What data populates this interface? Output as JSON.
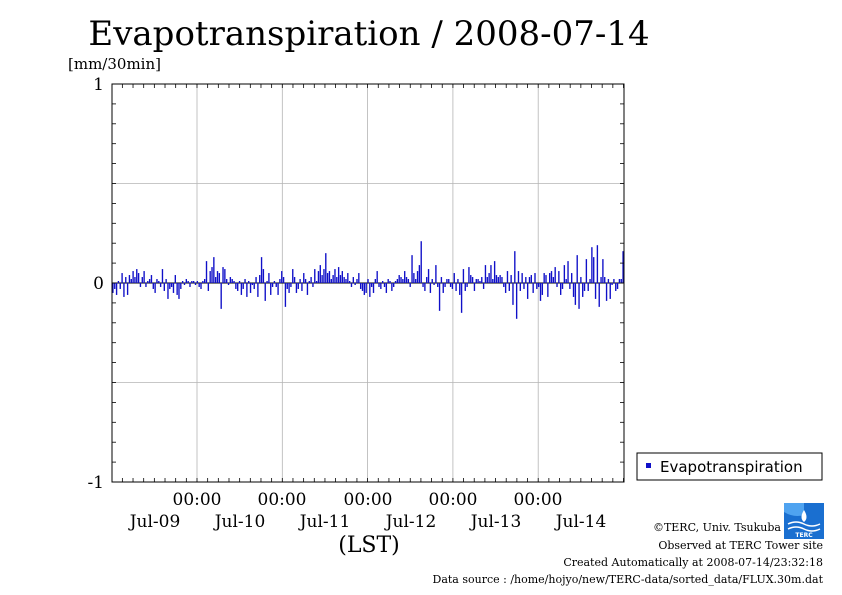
{
  "chart_data": {
    "type": "bar",
    "title": "Evapotranspiration / 2008-07-14",
    "ylabel": "[mm/30min]",
    "xlabel": "(LST)",
    "ylim": [
      -1,
      1
    ],
    "yticks": [
      "1",
      "0",
      "-1"
    ],
    "xticks_time": [
      "00:00",
      "00:00",
      "00:00",
      "00:00",
      "00:00"
    ],
    "xticks_date": [
      "Jul-09",
      "Jul-10",
      "Jul-11",
      "Jul-12",
      "Jul-13",
      "Jul-14"
    ],
    "grid": true,
    "legend_position": "right-bottom",
    "series": [
      {
        "name": "Evapotranspiration",
        "color": "#1010c8",
        "values": [
          -0.05,
          -0.03,
          -0.06,
          0.01,
          -0.03,
          0.05,
          -0.07,
          0.03,
          -0.06,
          0.04,
          0.02,
          0.06,
          0.03,
          0.07,
          0.05,
          -0.02,
          0.03,
          0.06,
          -0.02,
          0.01,
          0.02,
          0.04,
          -0.03,
          -0.05,
          0.02,
          0.01,
          -0.02,
          0.07,
          -0.04,
          0.02,
          -0.08,
          -0.03,
          -0.02,
          -0.05,
          0.04,
          -0.06,
          -0.08,
          -0.03,
          0.01,
          -0.01,
          0.02,
          0.01,
          -0.02,
          0.01,
          0.01,
          -0.01,
          0.01,
          -0.02,
          -0.03,
          0.01,
          0.02,
          0.11,
          -0.04,
          0.06,
          0.08,
          0.13,
          0.03,
          0.06,
          0.05,
          -0.13,
          0.08,
          0.07,
          0.02,
          -0.01,
          0.03,
          0.02,
          0.01,
          -0.03,
          -0.04,
          0.01,
          -0.06,
          -0.03,
          0.02,
          -0.07,
          0.01,
          -0.05,
          -0.01,
          -0.03,
          0.03,
          -0.07,
          0.04,
          0.13,
          0.07,
          -0.09,
          0.01,
          0.05,
          -0.06,
          -0.02,
          0.01,
          -0.02,
          -0.06,
          0.02,
          0.06,
          0.03,
          -0.12,
          -0.03,
          -0.05,
          -0.02,
          0.07,
          0.03,
          -0.05,
          -0.03,
          0.02,
          -0.04,
          0.05,
          0.02,
          -0.06,
          0.01,
          0.03,
          -0.02,
          0.07,
          0.01,
          0.06,
          0.09,
          0.04,
          0.07,
          0.15,
          0.05,
          0.06,
          0.02,
          0.04,
          0.07,
          0.03,
          0.08,
          0.04,
          0.06,
          0.03,
          0.02,
          0.05,
          0.01,
          -0.02,
          0.03,
          -0.01,
          0.02,
          0.05,
          -0.03,
          -0.04,
          -0.06,
          -0.05,
          0.02,
          -0.07,
          -0.02,
          -0.05,
          0.02,
          0.06,
          -0.02,
          -0.03,
          0.01,
          -0.02,
          -0.05,
          0.02,
          0.01,
          -0.04,
          -0.02,
          0.01,
          0.02,
          0.04,
          0.03,
          0.02,
          0.06,
          0.03,
          0.02,
          -0.02,
          0.14,
          0.05,
          0.02,
          0.06,
          0.09,
          0.21,
          -0.02,
          -0.04,
          0.03,
          0.07,
          -0.05,
          0.02,
          -0.01,
          0.09,
          -0.02,
          -0.14,
          0.03,
          -0.05,
          -0.02,
          0.02,
          0.02,
          -0.02,
          -0.03,
          0.05,
          -0.04,
          0.02,
          -0.06,
          -0.15,
          0.07,
          -0.04,
          -0.02,
          0.08,
          0.04,
          0.03,
          -0.04,
          0.02,
          0.02,
          0.01,
          0.03,
          -0.03,
          0.09,
          0.03,
          0.05,
          0.09,
          0.02,
          0.11,
          0.04,
          0.03,
          0.04,
          0.03,
          -0.02,
          -0.05,
          0.06,
          -0.04,
          0.04,
          -0.11,
          0.16,
          -0.18,
          0.06,
          -0.04,
          0.05,
          -0.03,
          0.03,
          -0.08,
          0.03,
          0.04,
          -0.05,
          0.05,
          -0.03,
          -0.02,
          -0.09,
          -0.06,
          0.05,
          0.04,
          -0.07,
          0.05,
          0.06,
          0.03,
          0.08,
          -0.02,
          0.06,
          -0.06,
          -0.03,
          0.09,
          0.02,
          0.11,
          -0.03,
          0.05,
          -0.07,
          -0.11,
          0.14,
          -0.13,
          0.03,
          -0.07,
          -0.04,
          0.12,
          -0.04,
          0.02,
          0.18,
          0.13,
          -0.08,
          0.19,
          -0.12,
          0.03,
          0.12,
          0.03,
          -0.09,
          0.02,
          -0.08,
          -0.01,
          0.02,
          -0.04,
          -0.03,
          0.02,
          0.02,
          0.16
        ]
      }
    ]
  },
  "footer": {
    "credit": "©TERC, Univ. Tsukuba",
    "site": "Observed at TERC Tower site",
    "created": "Created Automatically at 2008-07-14/23:32:18",
    "source": "Data source : /home/hojyo/new/TERC-data/sorted_data/FLUX.30m.dat"
  },
  "logo": {
    "text": "TERC",
    "color": "#1a6fd0",
    "icon": "terc-logo-icon"
  },
  "colors": {
    "bar": "#1010c8",
    "grid": "#b4b4b4",
    "axis": "#000000"
  }
}
